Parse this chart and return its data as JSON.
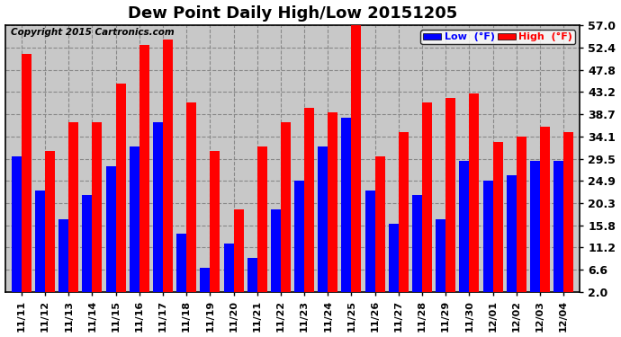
{
  "title": "Dew Point Daily High/Low 20151205",
  "copyright": "Copyright 2015 Cartronics.com",
  "dates": [
    "11/11",
    "11/12",
    "11/13",
    "11/14",
    "11/15",
    "11/16",
    "11/17",
    "11/18",
    "11/19",
    "11/20",
    "11/21",
    "11/22",
    "11/23",
    "11/24",
    "11/25",
    "11/26",
    "11/27",
    "11/28",
    "11/29",
    "11/30",
    "12/01",
    "12/02",
    "12/03",
    "12/04"
  ],
  "low_values": [
    30,
    23,
    17,
    22,
    28,
    32,
    37,
    14,
    7,
    12,
    9,
    19,
    25,
    32,
    38,
    23,
    16,
    22,
    17,
    29,
    25,
    26,
    29,
    29
  ],
  "high_values": [
    51,
    31,
    37,
    37,
    45,
    53,
    54,
    41,
    31,
    19,
    32,
    37,
    40,
    39,
    57,
    30,
    35,
    41,
    42,
    43,
    33,
    34,
    36,
    35
  ],
  "bar_color_low": "#0000ff",
  "bar_color_high": "#ff0000",
  "bg_color": "#ffffff",
  "plot_bg_color": "#c8c8c8",
  "grid_color": "#888888",
  "yticks": [
    2.0,
    6.6,
    11.2,
    15.8,
    20.3,
    24.9,
    29.5,
    34.1,
    38.7,
    43.2,
    47.8,
    52.4,
    57.0
  ],
  "ymin": 2.0,
  "ymax": 57.0,
  "title_fontsize": 13,
  "tick_fontsize": 9,
  "legend_low_label": "Low  (°F)",
  "legend_high_label": "High  (°F)",
  "bar_width": 0.42
}
